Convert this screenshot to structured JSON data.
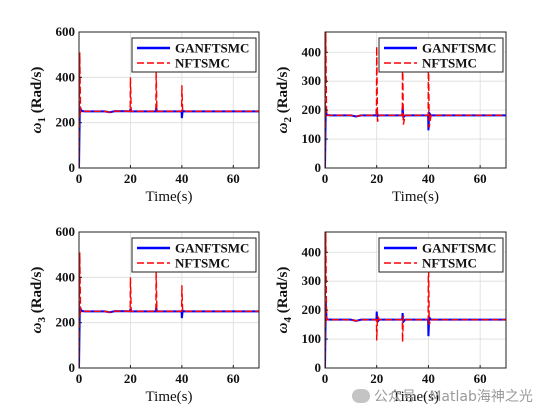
{
  "chart_data": [
    {
      "type": "line",
      "xlabel": "Time(s)",
      "ylabel_symbol": "ω",
      "ylabel_sub": "1",
      "ylabel_unit": " (Rad/s)",
      "xlim": [
        0,
        70
      ],
      "ylim": [
        0,
        600
      ],
      "xticks": [
        0,
        20,
        40,
        60
      ],
      "yticks": [
        0,
        200,
        400,
        600
      ],
      "grid": true,
      "legend_position": "top-right",
      "series": [
        {
          "name": "GANFTSMC",
          "color": "#0000ff",
          "style": "solid",
          "x": [
            0,
            0.3,
            0.6,
            1,
            2,
            5,
            10,
            12,
            14,
            19.9,
            20,
            20.3,
            21,
            29.9,
            30,
            30.3,
            31,
            39.9,
            40,
            40.3,
            41,
            50,
            60,
            70
          ],
          "y": [
            0,
            250,
            262,
            252,
            250,
            250,
            250,
            246,
            251,
            250,
            262,
            250,
            250,
            250,
            266,
            250,
            250,
            250,
            220,
            252,
            250,
            250,
            250,
            250
          ]
        },
        {
          "name": "NFTSMC",
          "color": "#ff0000",
          "style": "dashed",
          "x": [
            0,
            0.3,
            0.6,
            1,
            2,
            5,
            10,
            12,
            14,
            19.9,
            20,
            20.3,
            21,
            29.9,
            30,
            30.3,
            31,
            39.9,
            40,
            40.3,
            41,
            50,
            60,
            70
          ],
          "y": [
            0,
            510,
            245,
            252,
            250,
            250,
            250,
            246,
            251,
            250,
            400,
            250,
            250,
            250,
            430,
            250,
            250,
            250,
            365,
            250,
            250,
            250,
            250,
            250
          ]
        }
      ]
    },
    {
      "type": "line",
      "xlabel": "Time(s)",
      "ylabel_symbol": "ω",
      "ylabel_sub": "2",
      "ylabel_unit": " (Rad/s)",
      "xlim": [
        0,
        70
      ],
      "ylim": [
        0,
        470
      ],
      "xticks": [
        0,
        20,
        40,
        60
      ],
      "yticks": [
        0,
        100,
        200,
        300,
        400
      ],
      "grid": true,
      "legend_position": "top-right",
      "series": [
        {
          "name": "GANFTSMC",
          "color": "#0000ff",
          "style": "solid",
          "x": [
            0,
            0.3,
            0.6,
            1,
            2,
            5,
            10,
            12,
            14,
            19.9,
            20,
            20.3,
            21,
            29.9,
            30,
            30.3,
            31,
            39.9,
            40,
            40.3,
            41,
            50,
            60,
            70
          ],
          "y": [
            0,
            215,
            185,
            183,
            182,
            182,
            182,
            178,
            182,
            182,
            205,
            180,
            182,
            182,
            210,
            175,
            182,
            182,
            130,
            190,
            182,
            182,
            182,
            182
          ]
        },
        {
          "name": "NFTSMC",
          "color": "#ff0000",
          "style": "dashed",
          "x": [
            0,
            0.3,
            0.6,
            1,
            2,
            5,
            10,
            12,
            14,
            19.9,
            20,
            20.3,
            21,
            29.9,
            30,
            30.3,
            31,
            39.9,
            40,
            40.3,
            41,
            50,
            60,
            70
          ],
          "y": [
            0,
            470,
            180,
            183,
            182,
            182,
            182,
            178,
            182,
            182,
            420,
            160,
            182,
            182,
            420,
            150,
            182,
            182,
            420,
            140,
            182,
            182,
            182,
            182
          ]
        }
      ]
    },
    {
      "type": "line",
      "xlabel": "Time(s)",
      "ylabel_symbol": "ω",
      "ylabel_sub": "3",
      "ylabel_unit": " (Rad/s)",
      "xlim": [
        0,
        70
      ],
      "ylim": [
        0,
        600
      ],
      "xticks": [
        0,
        20,
        40,
        60
      ],
      "yticks": [
        0,
        200,
        400,
        600
      ],
      "grid": true,
      "legend_position": "top-right",
      "series": [
        {
          "name": "GANFTSMC",
          "color": "#0000ff",
          "style": "solid",
          "x": [
            0,
            0.3,
            0.6,
            1,
            2,
            5,
            10,
            12,
            14,
            19.9,
            20,
            20.3,
            21,
            29.9,
            30,
            30.3,
            31,
            39.9,
            40,
            40.3,
            41,
            50,
            60,
            70
          ],
          "y": [
            0,
            250,
            262,
            252,
            250,
            250,
            250,
            246,
            251,
            250,
            262,
            250,
            250,
            250,
            266,
            250,
            250,
            250,
            220,
            252,
            250,
            250,
            250,
            250
          ]
        },
        {
          "name": "NFTSMC",
          "color": "#ff0000",
          "style": "dashed",
          "x": [
            0,
            0.3,
            0.6,
            1,
            2,
            5,
            10,
            12,
            14,
            19.9,
            20,
            20.3,
            21,
            29.9,
            30,
            30.3,
            31,
            39.9,
            40,
            40.3,
            41,
            50,
            60,
            70
          ],
          "y": [
            0,
            510,
            245,
            252,
            250,
            250,
            250,
            246,
            251,
            250,
            400,
            250,
            250,
            250,
            430,
            250,
            250,
            250,
            365,
            250,
            250,
            250,
            250,
            250
          ]
        }
      ]
    },
    {
      "type": "line",
      "xlabel": "Time(s)",
      "ylabel_symbol": "ω",
      "ylabel_sub": "4",
      "ylabel_unit": " (Rad/s)",
      "xlim": [
        0,
        70
      ],
      "ylim": [
        0,
        470
      ],
      "xticks": [
        0,
        20,
        40,
        60
      ],
      "yticks": [
        0,
        100,
        200,
        300,
        400
      ],
      "grid": true,
      "legend_position": "top-right",
      "series": [
        {
          "name": "GANFTSMC",
          "color": "#0000ff",
          "style": "solid",
          "x": [
            0,
            0.3,
            0.6,
            1,
            2,
            5,
            10,
            12,
            14,
            19.9,
            20,
            20.3,
            21,
            29.9,
            30,
            30.3,
            31,
            39.9,
            40,
            40.3,
            41,
            50,
            60,
            70
          ],
          "y": [
            0,
            225,
            170,
            168,
            167,
            167,
            167,
            163,
            167,
            167,
            195,
            160,
            167,
            167,
            190,
            160,
            167,
            167,
            110,
            175,
            167,
            167,
            167,
            167
          ]
        },
        {
          "name": "NFTSMC",
          "color": "#ff0000",
          "style": "dashed",
          "x": [
            0,
            0.3,
            0.6,
            1,
            2,
            5,
            10,
            12,
            14,
            19.9,
            20,
            20.3,
            21,
            29.9,
            30,
            30.3,
            31,
            39.9,
            40,
            40.3,
            41,
            50,
            60,
            70
          ],
          "y": [
            0,
            470,
            165,
            168,
            167,
            167,
            167,
            163,
            167,
            167,
            95,
            180,
            167,
            167,
            90,
            180,
            167,
            167,
            420,
            150,
            167,
            167,
            167,
            167
          ]
        }
      ]
    }
  ],
  "watermark": {
    "text": "公众号 · Matlab海神之光",
    "icon": "wechat-bubble-icon"
  }
}
